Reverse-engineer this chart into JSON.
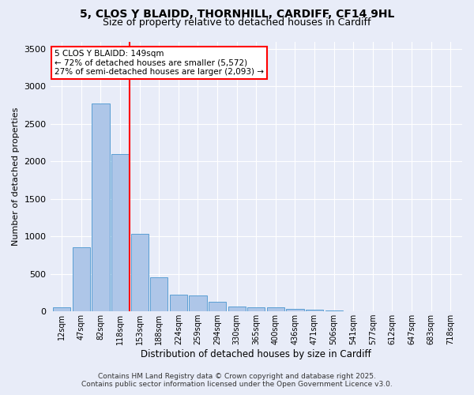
{
  "title_line1": "5, CLOS Y BLAIDD, THORNHILL, CARDIFF, CF14 9HL",
  "title_line2": "Size of property relative to detached houses in Cardiff",
  "xlabel": "Distribution of detached houses by size in Cardiff",
  "ylabel": "Number of detached properties",
  "bar_labels": [
    "12sqm",
    "47sqm",
    "82sqm",
    "118sqm",
    "153sqm",
    "188sqm",
    "224sqm",
    "259sqm",
    "294sqm",
    "330sqm",
    "365sqm",
    "400sqm",
    "436sqm",
    "471sqm",
    "506sqm",
    "541sqm",
    "577sqm",
    "612sqm",
    "647sqm",
    "683sqm",
    "718sqm"
  ],
  "bar_values": [
    55,
    850,
    2770,
    2100,
    1030,
    450,
    220,
    215,
    130,
    65,
    50,
    50,
    35,
    20,
    15,
    5,
    5,
    3,
    2,
    2,
    1
  ],
  "bar_color": "#aec6e8",
  "bar_edgecolor": "#5a9fd4",
  "vline_color": "red",
  "vline_xindex": 3.5,
  "annotation_text": "5 CLOS Y BLAIDD: 149sqm\n← 72% of detached houses are smaller (5,572)\n27% of semi-detached houses are larger (2,093) →",
  "annotation_box_color": "red",
  "annotation_facecolor": "white",
  "ylim": [
    0,
    3600
  ],
  "yticks": [
    0,
    500,
    1000,
    1500,
    2000,
    2500,
    3000,
    3500
  ],
  "footer_line1": "Contains HM Land Registry data © Crown copyright and database right 2025.",
  "footer_line2": "Contains public sector information licensed under the Open Government Licence v3.0.",
  "bg_color": "#e8ecf8",
  "plot_bg_color": "#e8ecf8"
}
